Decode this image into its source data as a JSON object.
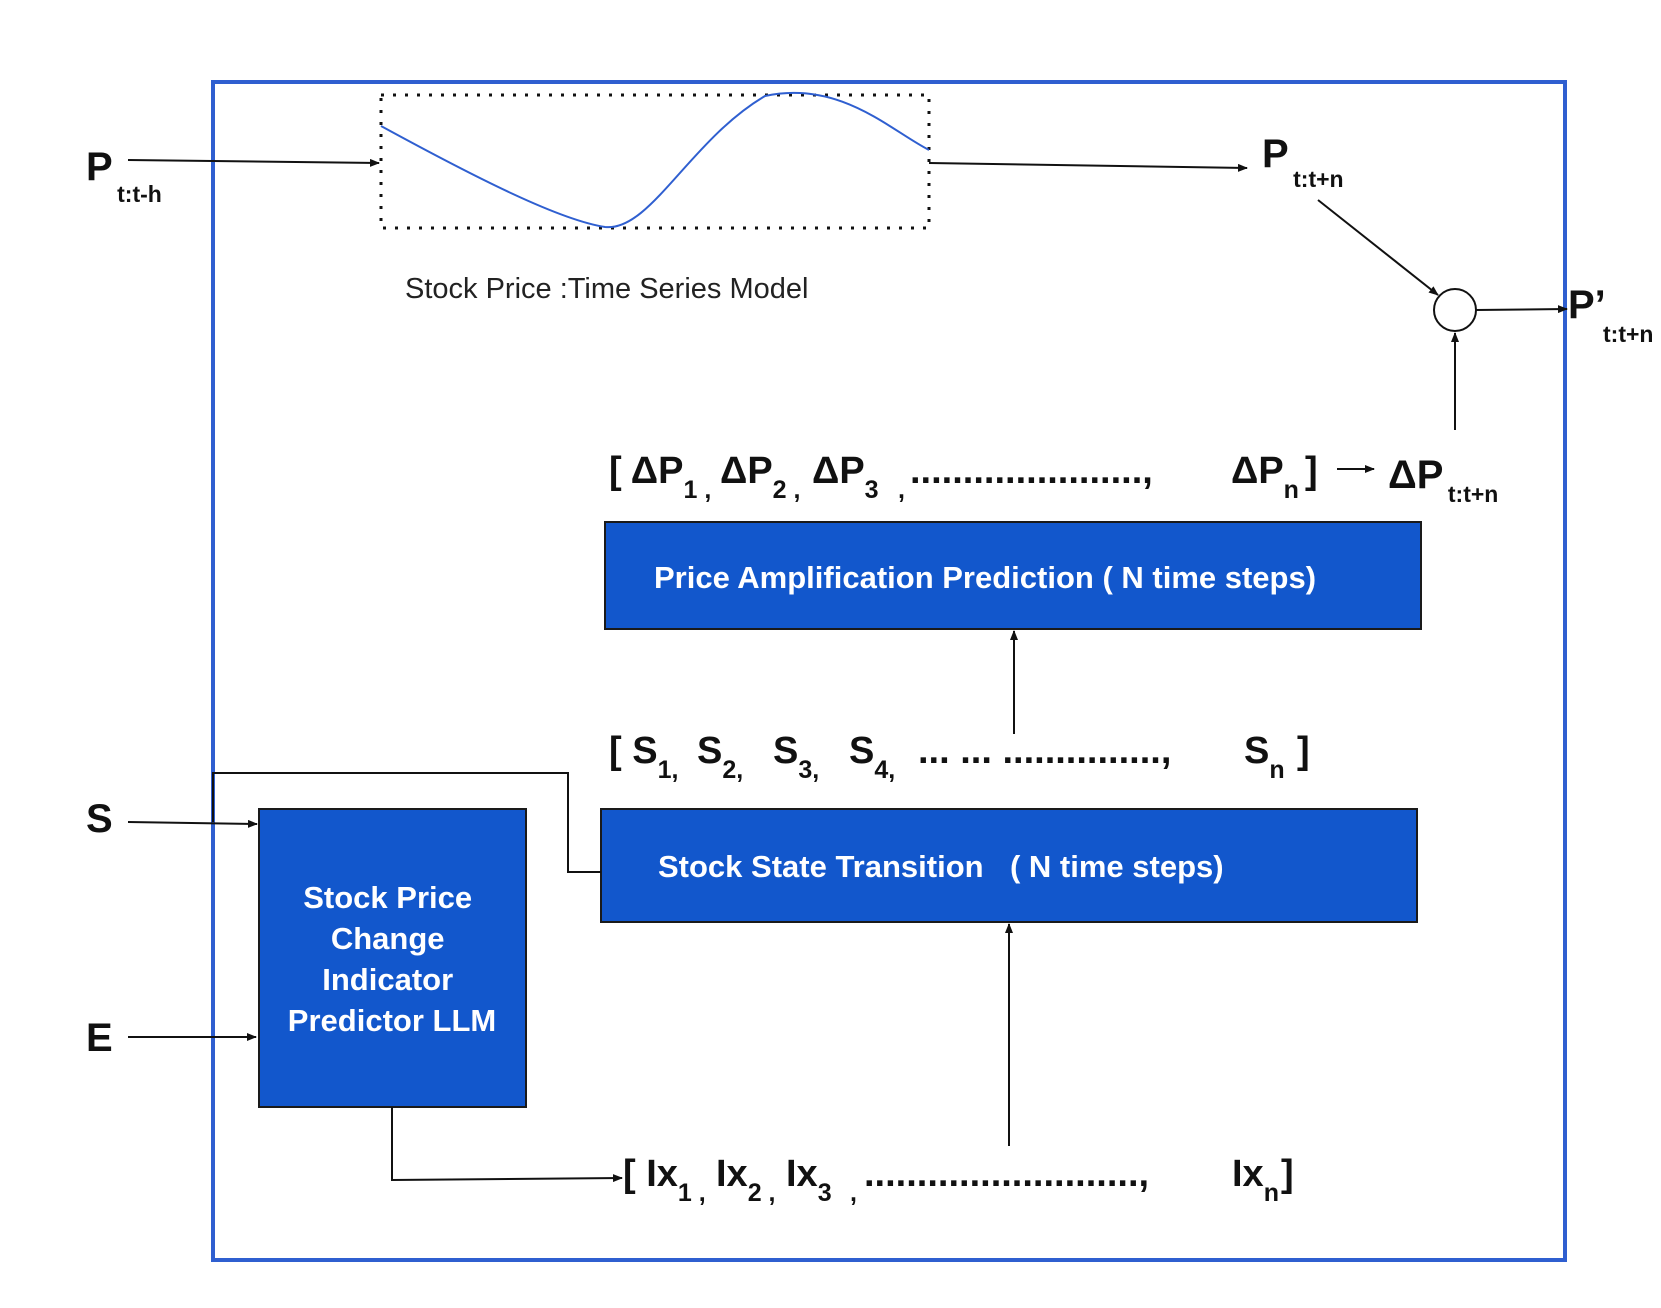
{
  "colors": {
    "frame": "#2f5fd0",
    "box_fill": "#1257cc",
    "curve": "#2f5fd0",
    "box_text": "#ffffff"
  },
  "inputs": {
    "p_hist": {
      "main": "P",
      "sub": "t:t-h"
    },
    "s": "S",
    "e": "E"
  },
  "time_series": {
    "caption": "Stock Price :Time Series Model"
  },
  "outputs": {
    "p_pred": {
      "main": "P",
      "sub": "t:t+n"
    },
    "p_final": {
      "main": "P’",
      "sub": "t:t+n"
    },
    "dp_total": {
      "main": "ΔP",
      "sub": "t:t+n"
    }
  },
  "dp_sequence": [
    {
      "main": "[ ΔP",
      "sub": "1 ,"
    },
    {
      "main": "ΔP",
      "sub": "2 ,"
    },
    {
      "main": "ΔP",
      "sub": "3"
    },
    {
      "main": "",
      "sub": ","
    },
    {
      "main": "......................,",
      "sub": ""
    },
    {
      "main": "ΔP",
      "sub": "n"
    },
    {
      "main": "]",
      "sub": ""
    }
  ],
  "s_sequence": [
    {
      "main": "[ S",
      "sub": "1,"
    },
    {
      "main": "S",
      "sub": "2,"
    },
    {
      "main": "S",
      "sub": "3,"
    },
    {
      "main": "S",
      "sub": "4,"
    },
    {
      "main": "...   ... ...............,",
      "sub": ""
    },
    {
      "main": "S",
      "sub": "n"
    },
    {
      "main": "]",
      "sub": ""
    }
  ],
  "ix_sequence": [
    {
      "main": "[ Ix",
      "sub": "1 ,"
    },
    {
      "main": "Ix",
      "sub": "2 ,"
    },
    {
      "main": "Ix",
      "sub": "3"
    },
    {
      "main": "",
      "sub": ","
    },
    {
      "main": "..........................,",
      "sub": ""
    },
    {
      "main": "Ix",
      "sub": "n"
    },
    {
      "main": "]",
      "sub": ""
    }
  ],
  "boxes": {
    "amplification": "Price Amplification Prediction ( N time steps)",
    "transition": {
      "part1": "Stock State Transition",
      "part2": "( N time steps)"
    },
    "llm": [
      "Stock Price",
      "Change",
      "Indicator",
      "Predictor LLM"
    ]
  }
}
